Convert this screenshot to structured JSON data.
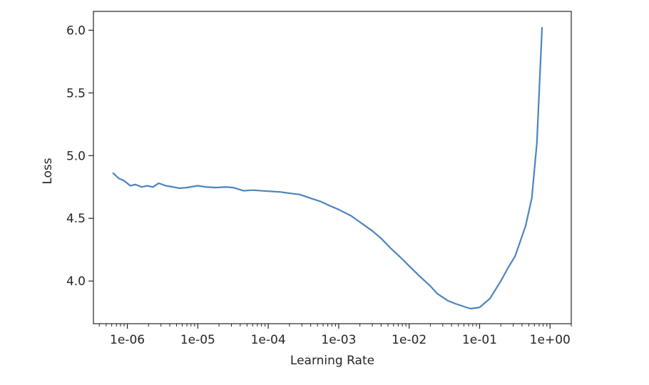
{
  "chart_data": {
    "type": "line",
    "title": "",
    "xlabel": "Learning Rate",
    "ylabel": "Loss",
    "xscale": "log",
    "xlim": [
      3.3e-07,
      2.0
    ],
    "ylim": [
      3.66,
      6.15
    ],
    "xticks": [
      {
        "value": 1e-06,
        "label": "1e-06"
      },
      {
        "value": 1e-05,
        "label": "1e-05"
      },
      {
        "value": 0.0001,
        "label": "1e-04"
      },
      {
        "value": 0.001,
        "label": "1e-03"
      },
      {
        "value": 0.01,
        "label": "1e-02"
      },
      {
        "value": 0.1,
        "label": "1e-01"
      },
      {
        "value": 1,
        "label": "1e+00"
      }
    ],
    "yticks": [
      {
        "value": 4.0,
        "label": "4.0"
      },
      {
        "value": 4.5,
        "label": "4.5"
      },
      {
        "value": 5.0,
        "label": "5.0"
      },
      {
        "value": 5.5,
        "label": "5.5"
      },
      {
        "value": 6.0,
        "label": "6.0"
      }
    ],
    "grid": false,
    "legend": "none",
    "series": [
      {
        "color": "#4c84bf",
        "points": [
          [
            6.3e-07,
            4.86
          ],
          [
            7.5e-07,
            4.82
          ],
          [
            9e-07,
            4.8
          ],
          [
            1.1e-06,
            4.76
          ],
          [
            1.3e-06,
            4.77
          ],
          [
            1.6e-06,
            4.75
          ],
          [
            1.9e-06,
            4.76
          ],
          [
            2.3e-06,
            4.75
          ],
          [
            2.8e-06,
            4.78
          ],
          [
            3.5e-06,
            4.76
          ],
          [
            4.5e-06,
            4.75
          ],
          [
            5.5e-06,
            4.74
          ],
          [
            7e-06,
            4.745
          ],
          [
            1e-05,
            4.76
          ],
          [
            1.3e-05,
            4.75
          ],
          [
            1.8e-05,
            4.745
          ],
          [
            2.5e-05,
            4.75
          ],
          [
            3.2e-05,
            4.745
          ],
          [
            4.5e-05,
            4.72
          ],
          [
            6e-05,
            4.725
          ],
          [
            8e-05,
            4.72
          ],
          [
            0.00011,
            4.715
          ],
          [
            0.00015,
            4.71
          ],
          [
            0.0002,
            4.7
          ],
          [
            0.00028,
            4.69
          ],
          [
            0.0004,
            4.66
          ],
          [
            0.00055,
            4.635
          ],
          [
            0.00075,
            4.6
          ],
          [
            0.001,
            4.57
          ],
          [
            0.0015,
            4.52
          ],
          [
            0.002,
            4.47
          ],
          [
            0.003,
            4.4
          ],
          [
            0.004,
            4.34
          ],
          [
            0.0055,
            4.26
          ],
          [
            0.0075,
            4.19
          ],
          [
            0.01,
            4.12
          ],
          [
            0.014,
            4.04
          ],
          [
            0.02,
            3.96
          ],
          [
            0.025,
            3.9
          ],
          [
            0.035,
            3.845
          ],
          [
            0.045,
            3.82
          ],
          [
            0.065,
            3.79
          ],
          [
            0.075,
            3.78
          ],
          [
            0.1,
            3.79
          ],
          [
            0.14,
            3.86
          ],
          [
            0.2,
            4.0
          ],
          [
            0.25,
            4.1
          ],
          [
            0.32,
            4.2
          ],
          [
            0.45,
            4.44
          ],
          [
            0.55,
            4.66
          ],
          [
            0.65,
            5.1
          ],
          [
            0.77,
            6.02
          ]
        ]
      }
    ]
  }
}
